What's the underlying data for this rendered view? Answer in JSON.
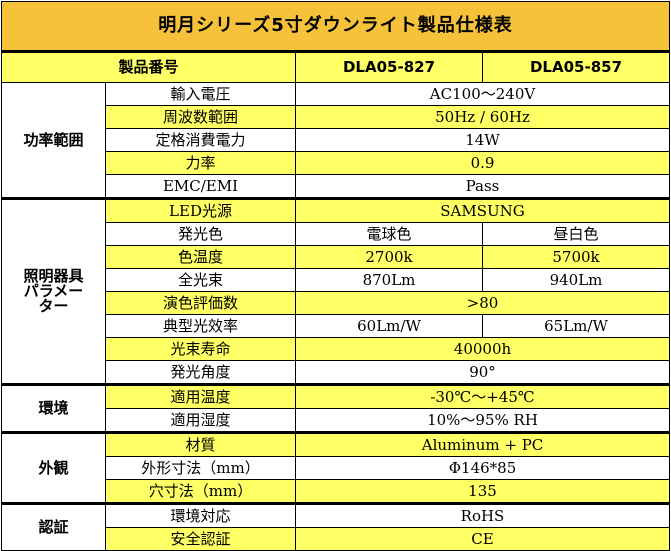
{
  "title": "明月シリーズ5寸ダウンライト製品仕様表",
  "header": {
    "product_label": "製品番号",
    "model_a": "DLA05-827",
    "model_b": "DLA05-857"
  },
  "categories": {
    "power": "功率範囲",
    "lighting_line1": "照明器具",
    "lighting_line2": "パラメー",
    "lighting_line3": "ター",
    "environment": "環境",
    "appearance": "外観",
    "certification": "認証"
  },
  "rows": {
    "input_voltage": {
      "label": "輸入電圧",
      "value": "AC100～240V"
    },
    "frequency": {
      "label": "周波数範囲",
      "value": "50Hz / 60Hz"
    },
    "rated_power": {
      "label": "定格消費電力",
      "value": "14W"
    },
    "power_factor": {
      "label": "力率",
      "value": "0.9"
    },
    "emc": {
      "label": "EMC/EMI",
      "value": "Pass"
    },
    "led_source": {
      "label": "LED光源",
      "value": "SAMSUNG"
    },
    "light_color": {
      "label": "発光色",
      "value_a": "電球色",
      "value_b": "昼白色"
    },
    "color_temp": {
      "label": "色温度",
      "value_a": "2700k",
      "value_b": "5700k"
    },
    "flux": {
      "label": "全光束",
      "value_a": "870Lm",
      "value_b": "940Lm"
    },
    "cri": {
      "label": "演色評価数",
      "value": ">80"
    },
    "efficacy": {
      "label": "典型光效率",
      "value_a": "60Lm/W",
      "value_b": "65Lm/W"
    },
    "lifetime": {
      "label": "光束寿命",
      "value": "40000h"
    },
    "angle": {
      "label": "発光角度",
      "value": "90°"
    },
    "temp_range": {
      "label": "適用温度",
      "value": "-30℃～+45℃"
    },
    "humidity": {
      "label": "適用湿度",
      "value": "10%～95% RH"
    },
    "material": {
      "label": "材質",
      "value": "Aluminum + PC"
    },
    "dimensions": {
      "label": "外形寸法（mm）",
      "value": "Φ146*85"
    },
    "cutout": {
      "label": "穴寸法（mm）",
      "value": "135"
    },
    "env_compliance": {
      "label": "環境対応",
      "value": "RoHS"
    },
    "safety_cert": {
      "label": "安全認証",
      "value": "CE"
    }
  },
  "colors": {
    "title_bg": "#f5c23a",
    "highlight": "#ffff66",
    "border": "#000000"
  }
}
